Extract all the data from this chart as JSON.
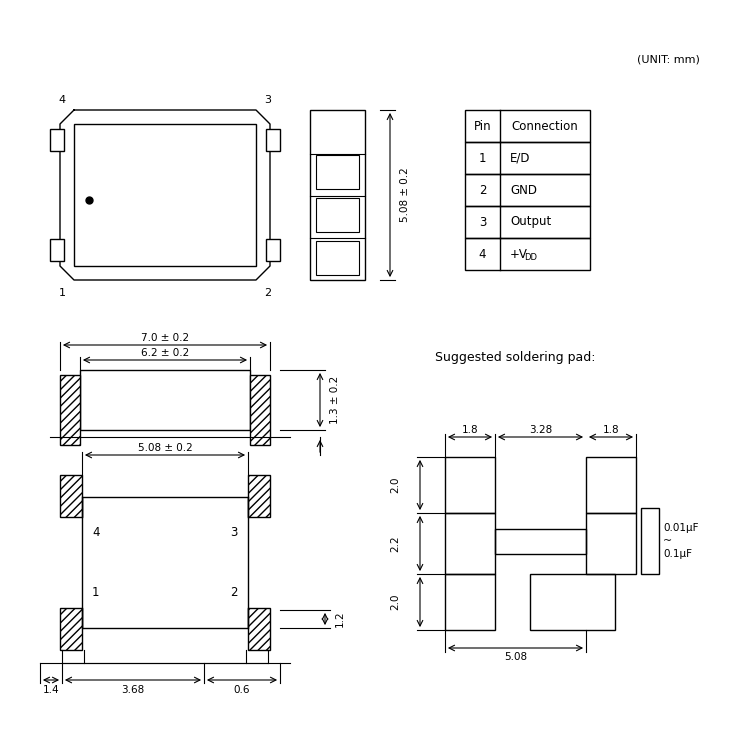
{
  "bg_color": "#ffffff",
  "line_color": "#000000",
  "hatch_color": "#000000",
  "unit_text": "(UNIT: mm)",
  "table_headers": [
    "Pin",
    "Connection"
  ],
  "table_rows": [
    [
      "1",
      "E/D"
    ],
    [
      "2",
      "GND"
    ],
    [
      "3",
      "Output"
    ],
    [
      "4",
      "+VDD"
    ]
  ],
  "solder_title": "Suggested soldering pad:",
  "cap_text": "0.01μF\n~\n0.1μF",
  "dims": {
    "top_width": "7.0 ± 0.2",
    "top_inner_width": "6.2 ± 0.2",
    "top_height": "1.3 ± 0.2",
    "side_height": "5.08 ± 0.2",
    "bot_pad_spacing": "5.08 ± 0.2",
    "bot_dim1": "1.4",
    "bot_dim2": "3.68",
    "bot_dim3": "0.6",
    "bot_pin_height": "1.2",
    "pad_w1": "1.8",
    "pad_w2": "3.28",
    "pad_w3": "1.8",
    "pad_h1": "2.0",
    "pad_h2": "2.2",
    "pad_h3": "2.0",
    "pad_total": "5.08"
  }
}
